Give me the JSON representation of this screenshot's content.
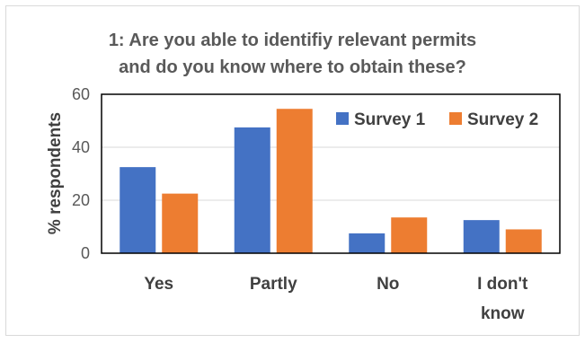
{
  "chart_data": {
    "type": "bar",
    "title_lines": [
      "1: Are you able to identifiy relevant permits",
      "and do you know where to obtain these?"
    ],
    "xlabel": "",
    "ylabel": "% respondents",
    "ylim": [
      0,
      60
    ],
    "yticks": [
      0,
      20,
      40,
      60
    ],
    "grid": true,
    "legend_position": "top-right",
    "categories": [
      [
        "Yes"
      ],
      [
        "Partly"
      ],
      [
        "No"
      ],
      [
        "I don't",
        "know"
      ]
    ],
    "series": [
      {
        "name": "Survey 1",
        "color": "#4472c4",
        "values": [
          32.5,
          47.5,
          7.5,
          12.5
        ]
      },
      {
        "name": "Survey 2",
        "color": "#ed7d31",
        "values": [
          22.5,
          54.5,
          13.5,
          9
        ]
      }
    ]
  }
}
